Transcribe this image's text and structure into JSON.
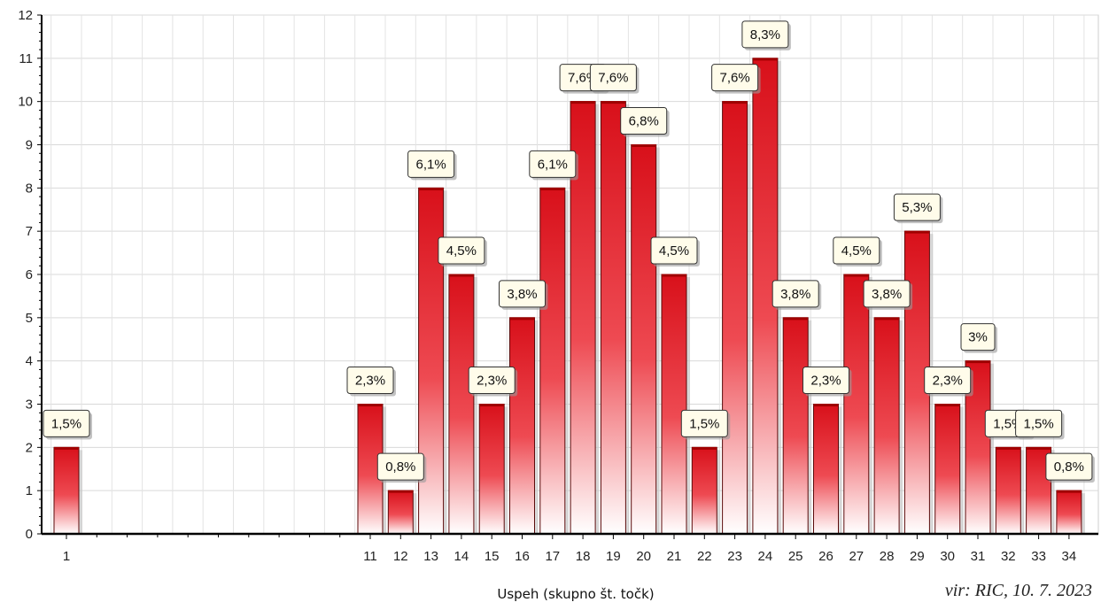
{
  "chart_data": {
    "type": "bar",
    "xlabel": "Uspeh (skupno št. točk)",
    "ylabel": "",
    "ylim": [
      0,
      12
    ],
    "yticks": [
      0,
      1,
      2,
      3,
      4,
      5,
      6,
      7,
      8,
      9,
      10,
      11,
      12
    ],
    "x_range": [
      0,
      34
    ],
    "categories": [
      1,
      11,
      12,
      13,
      14,
      15,
      16,
      17,
      18,
      19,
      20,
      21,
      22,
      23,
      24,
      25,
      26,
      27,
      28,
      29,
      30,
      31,
      32,
      33,
      34
    ],
    "values": [
      2,
      3,
      1,
      8,
      6,
      3,
      5,
      8,
      10,
      10,
      9,
      6,
      2,
      10,
      11,
      5,
      3,
      6,
      5,
      7,
      3,
      4,
      2,
      2,
      1
    ],
    "labels": [
      "1,5%",
      "2,3%",
      "0,8%",
      "6,1%",
      "4,5%",
      "2,3%",
      "3,8%",
      "6,1%",
      "7,6%",
      "7,6%",
      "6,8%",
      "4,5%",
      "1,5%",
      "7,6%",
      "8,3%",
      "3,8%",
      "2,3%",
      "4,5%",
      "3,8%",
      "5,3%",
      "2,3%",
      "3%",
      "1,5%",
      "1,5%",
      "0,8%"
    ],
    "grid": true,
    "colors": {
      "bar": "#e0101c",
      "bar_light": "#ffffff",
      "label_box": "#fffcea",
      "axis": "#000000",
      "grid": "#d9d9d9"
    }
  },
  "source": "vir: RIC, 10. 7. 2023"
}
